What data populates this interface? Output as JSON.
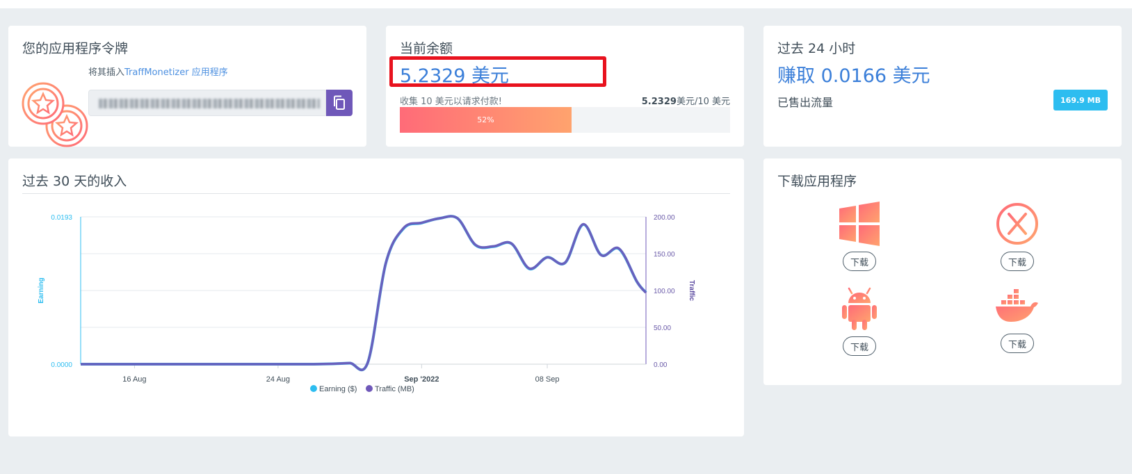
{
  "token_card": {
    "title": "您的应用程序令牌",
    "hint_prefix": "将其插入",
    "hint_link": "TraffMonetizer 应用程序",
    "token_value": "(blurred)"
  },
  "balance_card": {
    "title": "当前余额",
    "balance": "5.2329 美元",
    "collect_text": "收集 10 美元以请求付款!",
    "progress_amount": "5.2329",
    "progress_suffix": "美元/10 美元",
    "progress_percent": 52,
    "progress_label": "52%"
  },
  "day_card": {
    "title": "过去 24 小时",
    "earned": "赚取 0.0166 美元",
    "traffic_label": "已售出流量",
    "traffic_value": "169.9 MB"
  },
  "income_card": {
    "title": "过去 30 天的收入"
  },
  "download_card": {
    "title": "下载应用程序",
    "items": [
      {
        "icon": "windows-icon",
        "label": "下载"
      },
      {
        "icon": "x-circle-icon",
        "label": "下载"
      },
      {
        "icon": "android-icon",
        "label": "下载"
      },
      {
        "icon": "docker-icon",
        "label": "下载"
      }
    ]
  },
  "colors": {
    "accent_blue": "#3b7fd9",
    "earning": "#2dbdf0",
    "traffic": "#6f58b9",
    "highlight_red": "#e8121e",
    "gradient_start": "#ff6b78",
    "gradient_end": "#ffa36e"
  },
  "chart_data": {
    "type": "line",
    "left_axis": {
      "label": "Earning",
      "ticks": [
        "0.0193",
        "0.0000"
      ],
      "ylim": [
        0,
        0.0193
      ]
    },
    "right_axis": {
      "label": "Traffic",
      "ticks": [
        "200.00",
        "150.00",
        "100.00",
        "50.00",
        "0.00"
      ],
      "ylim": [
        0,
        200
      ]
    },
    "x_ticks": [
      "16 Aug",
      "24 Aug",
      "Sep '2022",
      "08 Sep"
    ],
    "x_tick_days": [
      16,
      24,
      32,
      39
    ],
    "xlim": [
      13,
      44.5
    ],
    "legend": [
      "Earning ($)",
      "Traffic (MB)"
    ],
    "series": [
      {
        "name": "Traffic (MB)",
        "x": [
          13,
          14,
          15,
          16,
          17,
          18,
          19,
          20,
          21,
          22,
          23,
          24,
          25,
          26,
          27,
          28,
          29,
          30,
          31,
          32,
          33,
          34,
          35,
          36,
          37,
          38,
          39,
          40,
          41,
          42,
          43,
          44,
          44.5
        ],
        "values": [
          0,
          0,
          0,
          0,
          0,
          0,
          0,
          0,
          0,
          0,
          0,
          0,
          0,
          0,
          0.5,
          1.5,
          2.5,
          137,
          185,
          192,
          198,
          198,
          162,
          160,
          164,
          130,
          145,
          138,
          190,
          148,
          157,
          112,
          97
        ]
      },
      {
        "name": "Earning ($)",
        "x": [
          13,
          14,
          15,
          16,
          17,
          18,
          19,
          20,
          21,
          22,
          23,
          24,
          25,
          26,
          27,
          28,
          29,
          30,
          31,
          32,
          33,
          34,
          35,
          36,
          37,
          38,
          39,
          40,
          41,
          42,
          43,
          44,
          44.5
        ],
        "values": [
          0,
          0,
          0,
          0,
          0,
          0,
          0,
          0,
          0,
          0,
          0,
          0,
          0,
          0,
          5e-05,
          0.00014,
          0.00024,
          0.0132,
          0.0178,
          0.0185,
          0.0191,
          0.0191,
          0.0156,
          0.0154,
          0.0158,
          0.0125,
          0.014,
          0.0133,
          0.0183,
          0.0143,
          0.0151,
          0.0108,
          0.0094
        ]
      }
    ]
  }
}
